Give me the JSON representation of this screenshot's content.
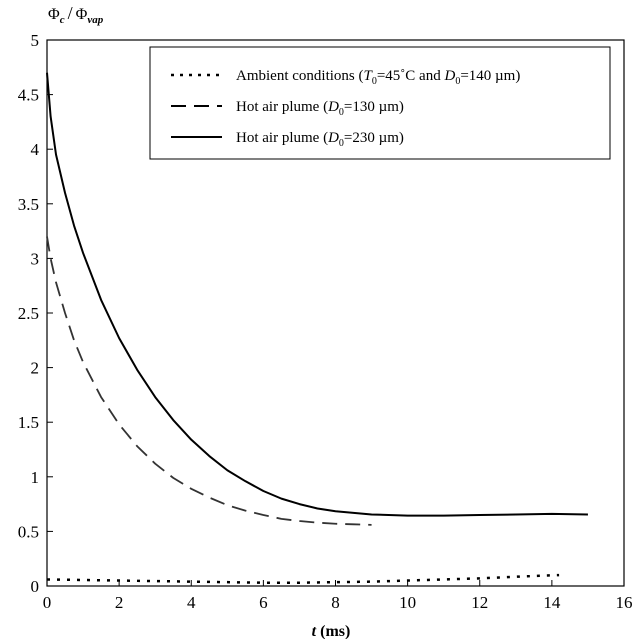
{
  "chart_data": {
    "type": "line",
    "ylabel": {
      "phi": "Φ",
      "sub1": "c",
      "slash": "/",
      "sub2": "vap"
    },
    "xlabel": {
      "var": "t",
      "unit": " (ms)"
    },
    "xlim": [
      0,
      16
    ],
    "ylim": [
      0,
      5
    ],
    "xticks": [
      "0",
      "2",
      "4",
      "6",
      "8",
      "10",
      "12",
      "14",
      "16"
    ],
    "yticks": [
      "0",
      "0.5",
      "1",
      "1.5",
      "2",
      "2.5",
      "3",
      "3.5",
      "4",
      "4.5",
      "5"
    ],
    "grid": false,
    "legend_position": "top-right",
    "legend": {
      "entry1": {
        "pre": "Ambient conditions (",
        "T": "T",
        "Tsub": "0",
        "mid": "=45˚C and ",
        "D": "D",
        "Dsub": "0",
        "post": "=140 µm)"
      },
      "entry2": {
        "pre": "Hot air plume (",
        "D": "D",
        "Dsub": "0",
        "post": "=130 µm)"
      },
      "entry3": {
        "pre": "Hot air plume (",
        "D": "D",
        "Dsub": "0",
        "post": "=230 µm)"
      }
    },
    "series": [
      {
        "style": "dotted",
        "x": [
          0,
          1,
          2,
          3,
          4,
          5,
          6,
          7,
          8,
          9,
          10,
          11,
          12,
          13,
          14.2
        ],
        "y": [
          0.06,
          0.055,
          0.05,
          0.045,
          0.04,
          0.035,
          0.03,
          0.03,
          0.035,
          0.04,
          0.05,
          0.06,
          0.07,
          0.085,
          0.1
        ]
      },
      {
        "style": "dashed",
        "x": [
          0,
          0.1,
          0.25,
          0.5,
          0.75,
          1,
          1.5,
          2,
          2.5,
          3,
          3.5,
          4,
          4.5,
          5,
          5.5,
          6,
          6.5,
          7,
          7.5,
          8,
          8.5,
          9
        ],
        "y": [
          3.2,
          3.0,
          2.78,
          2.5,
          2.25,
          2.05,
          1.73,
          1.48,
          1.28,
          1.12,
          0.99,
          0.89,
          0.81,
          0.74,
          0.69,
          0.65,
          0.615,
          0.595,
          0.58,
          0.57,
          0.565,
          0.56
        ]
      },
      {
        "style": "solid",
        "x": [
          0,
          0.1,
          0.25,
          0.5,
          0.75,
          1,
          1.5,
          2,
          2.5,
          3,
          3.5,
          4,
          4.5,
          5,
          5.5,
          6,
          6.5,
          7,
          7.5,
          8,
          9,
          10,
          11,
          12,
          13,
          14,
          15
        ],
        "y": [
          4.7,
          4.3,
          3.95,
          3.6,
          3.3,
          3.05,
          2.62,
          2.27,
          1.98,
          1.73,
          1.52,
          1.34,
          1.19,
          1.06,
          0.96,
          0.87,
          0.8,
          0.75,
          0.71,
          0.685,
          0.655,
          0.645,
          0.645,
          0.65,
          0.655,
          0.66,
          0.655
        ]
      }
    ]
  }
}
